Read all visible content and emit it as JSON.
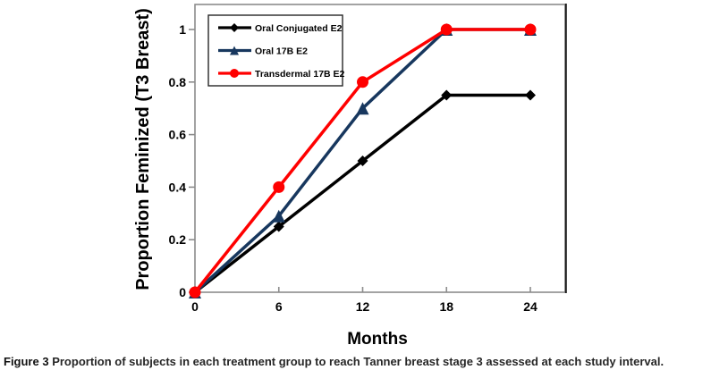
{
  "figure": {
    "caption_label": "Figure 3",
    "caption_text": "Proportion of subjects in each treatment group to reach Tanner breast stage 3 assessed at each study interval."
  },
  "chart_data": {
    "type": "line",
    "title": "",
    "xlabel": "Months",
    "ylabel": "Proportion Feminized (T3 Breast)",
    "x": [
      0,
      6,
      12,
      18,
      24
    ],
    "xtick_labels": [
      "0",
      "6",
      "12",
      "18",
      "24"
    ],
    "yticks": [
      0,
      0.2,
      0.4,
      0.6,
      0.8,
      1
    ],
    "ytick_labels": [
      "0",
      "0.2",
      "0.4",
      "0.6",
      "0.8",
      "1"
    ],
    "xlim": [
      0,
      26.5
    ],
    "ylim": [
      0,
      1
    ],
    "grid": false,
    "legend_position": "top-left inside",
    "axis_color": "#8c8c8c",
    "frame_right_color": "#1a1a1a",
    "series": [
      {
        "name": "Oral Conjugated E2",
        "color": "#000000",
        "marker": "diamond",
        "values": [
          0,
          0.25,
          0.5,
          0.75,
          0.75
        ]
      },
      {
        "name": "Oral 17B E2",
        "color": "#17375e",
        "marker": "triangle",
        "values": [
          0,
          0.29,
          0.7,
          1,
          1
        ]
      },
      {
        "name": "Transdermal 17B E2",
        "color": "#ff0000",
        "marker": "circle",
        "values": [
          0,
          0.4,
          0.8,
          1,
          1
        ]
      }
    ]
  }
}
